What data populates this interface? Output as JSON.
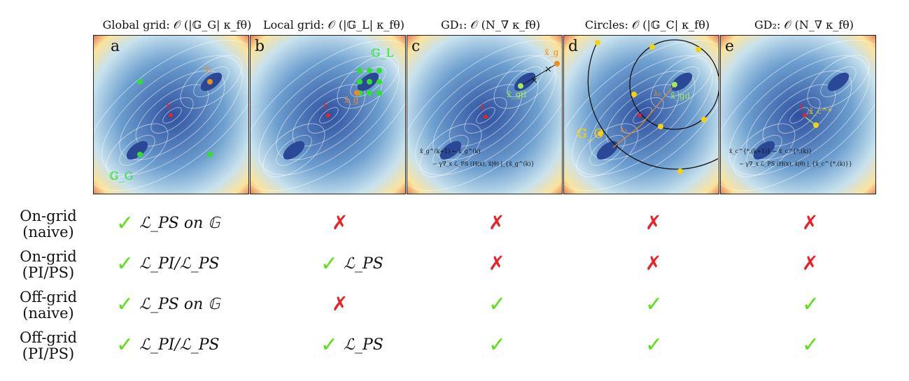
{
  "panels": [
    {
      "letter": "a",
      "title": "Global grid: 𝒪 (|𝔾_G| κ_fθ)",
      "labels": [
        "x̄₁",
        "x̄",
        "𝔾_G"
      ]
    },
    {
      "letter": "b",
      "title": "Local grid: 𝒪 (|𝔾_L| κ_fθ)",
      "labels": [
        "𝔾_L",
        "x̄_g",
        "x̄"
      ]
    },
    {
      "letter": "c",
      "title": "GD₁: 𝒪 (N_∇ κ_fθ)",
      "labels": [
        "x̄_g",
        "x̄_gd",
        "x̄",
        "x̃_g^(k+1) ← x̃_g^(k)",
        "− γ∇_x ℒ_PS (H(x), x̃|θ) |_{x̃_g^(k)}"
      ]
    },
    {
      "letter": "d",
      "title": "Circles: 𝒪 (|𝔾_C| κ_fθ)",
      "labels": [
        "x̄_gd",
        "λ₀",
        "λ₁",
        "𝔾_C"
      ]
    },
    {
      "letter": "e",
      "title": "GD₂: 𝒪 (N_∇ κ_fθ)",
      "labels": [
        "x̃_c^*",
        "x̄",
        "x̃_c^{*,(k+1)} ← x̃_c^{*,(k)}",
        "− γ∇_x ℒ_PS (H(x), x̃|θ) |_{x̃_c^{*,(k)}}"
      ]
    }
  ],
  "rows": [
    {
      "label_line1": "On-grid",
      "label_line2": "(naive)",
      "cells": [
        {
          "mark": "check",
          "text": "ℒ_PS on 𝔾"
        },
        {
          "mark": "cross",
          "text": ""
        },
        {
          "mark": "cross",
          "text": ""
        },
        {
          "mark": "cross",
          "text": ""
        },
        {
          "mark": "cross",
          "text": ""
        }
      ]
    },
    {
      "label_line1": "On-grid",
      "label_line2": "(PI/PS)",
      "cells": [
        {
          "mark": "check",
          "text": "ℒ_PI/ℒ_PS"
        },
        {
          "mark": "check",
          "text": "ℒ_PS"
        },
        {
          "mark": "cross",
          "text": ""
        },
        {
          "mark": "cross",
          "text": ""
        },
        {
          "mark": "cross",
          "text": ""
        }
      ]
    },
    {
      "label_line1": "Off-grid",
      "label_line2": "(naive)",
      "cells": [
        {
          "mark": "check",
          "text": "ℒ_PS on 𝔾"
        },
        {
          "mark": "cross",
          "text": ""
        },
        {
          "mark": "check",
          "text": ""
        },
        {
          "mark": "check",
          "text": ""
        },
        {
          "mark": "check",
          "text": ""
        }
      ]
    },
    {
      "label_line1": "Off-grid",
      "label_line2": "(PI/PS)",
      "cells": [
        {
          "mark": "check",
          "text": "ℒ_PI/ℒ_PS"
        },
        {
          "mark": "check",
          "text": "ℒ_PS"
        },
        {
          "mark": "check",
          "text": ""
        },
        {
          "mark": "check",
          "text": ""
        },
        {
          "mark": "check",
          "text": ""
        }
      ]
    }
  ],
  "glyphs": {
    "check": "✓",
    "cross": "✗"
  },
  "colors": {
    "green": "#5ee018",
    "red": "#e8212b",
    "orange": "#f08c1e",
    "yellow": "#f5d20a",
    "blue": "#3a5ca8"
  }
}
